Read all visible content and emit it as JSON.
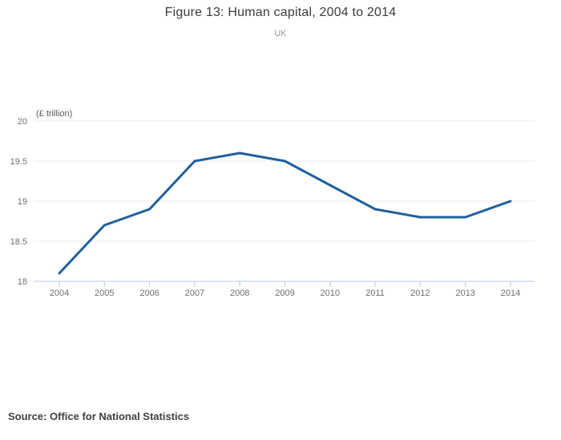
{
  "header": {
    "title": "Figure 13: Human capital, 2004 to 2014",
    "subtitle": "UK"
  },
  "chart_data": {
    "type": "line",
    "title": "Figure 13: Human capital, 2004 to 2014",
    "subtitle": "UK",
    "unit_label": "(£ trillion)",
    "x": [
      2004,
      2005,
      2006,
      2007,
      2008,
      2009,
      2010,
      2011,
      2012,
      2013,
      2014
    ],
    "xtick_labels": [
      "2004",
      "2005",
      "2006",
      "2007",
      "2008",
      "2009",
      "2010",
      "2011",
      "2012",
      "2013",
      "2014"
    ],
    "series": [
      {
        "name": "Human capital",
        "values": [
          18.1,
          18.7,
          18.9,
          19.5,
          19.6,
          19.5,
          19.2,
          18.9,
          18.8,
          18.8,
          19.0
        ]
      }
    ],
    "ylim": [
      18,
      20
    ],
    "yticks": [
      18,
      18.5,
      19,
      19.5,
      20
    ],
    "ytick_labels": [
      "18",
      "18.5",
      "19",
      "19.5",
      "20"
    ],
    "grid": true,
    "legend": "none",
    "colors": {
      "line": "#20609b",
      "grid": "#e9e9e9",
      "axis": "#c8d2e0",
      "tick_label": "#6e6e6e"
    }
  },
  "footer": {
    "source": "Source: Office for National Statistics"
  }
}
